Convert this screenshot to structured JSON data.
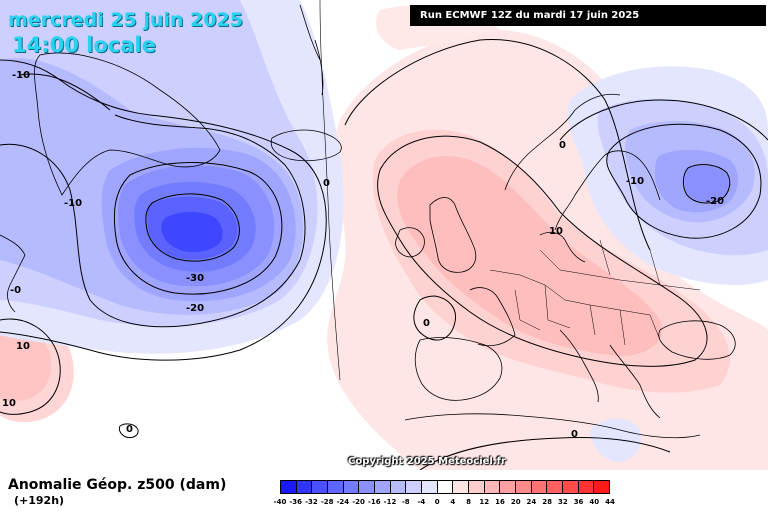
{
  "header": {
    "date": "mercredi 25 juin 2025",
    "time": "14:00 locale",
    "run": "Run ECMWF 12Z du mardi 17 juin 2025"
  },
  "footer": {
    "field_title": "Anomalie Géop. z500 (dam)",
    "lead_time": "(+192h)",
    "copyright": "Copyright 2025 Meteociel.fr"
  },
  "legend": {
    "ticks": [
      "-40",
      "-36",
      "-32",
      "-28",
      "-24",
      "-20",
      "-16",
      "-12",
      "-8",
      "-4",
      "0",
      "4",
      "8",
      "12",
      "16",
      "20",
      "24",
      "28",
      "32",
      "36",
      "40",
      "44"
    ],
    "colors": [
      "#1a1aff",
      "#2f37ff",
      "#4a50ff",
      "#5f66ff",
      "#737cff",
      "#8a91ff",
      "#a0a6ff",
      "#b6baff",
      "#cdd0ff",
      "#e4e6ff",
      "#ffffff",
      "#ffe4e4",
      "#ffcdcd",
      "#ffb6b6",
      "#ffa0a0",
      "#ff8a8a",
      "#ff7373",
      "#ff5f5f",
      "#ff4a4a",
      "#ff3333",
      "#ff1a1a"
    ]
  },
  "contour_labels": {
    "greenland_n10": "-10",
    "atlantic_w10": "-10",
    "low_30": "-30",
    "low_20": "-20",
    "mid_atlantic_0": "0",
    "west_0": "-0",
    "sw_pos10a": "10",
    "sw_pos10b": "10",
    "sw_0": "0",
    "iberia_0": "0",
    "europe_10": "10",
    "scandinavia_n10": "-10",
    "russia_n20": "-20",
    "scandinavia_0": "0",
    "med_0": "0"
  }
}
